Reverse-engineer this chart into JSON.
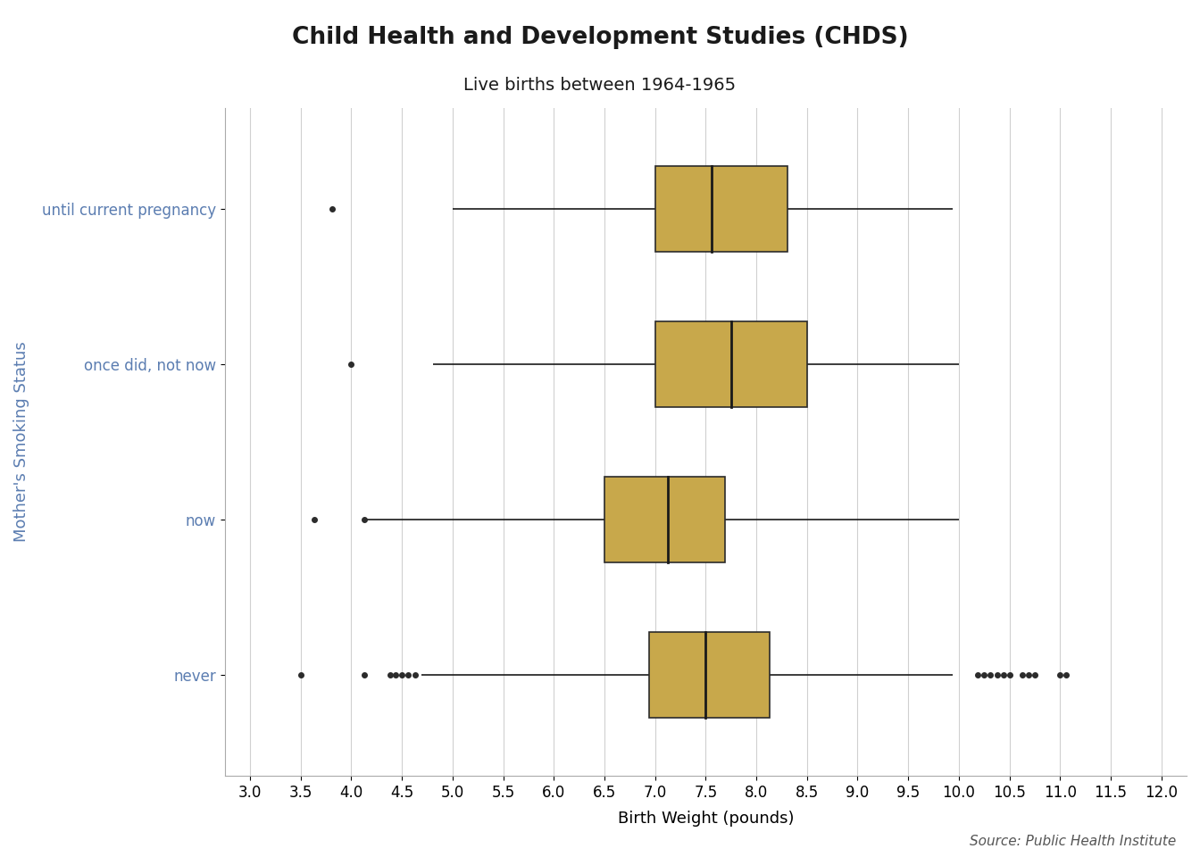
{
  "title": "Child Health and Development Studies (CHDS)",
  "subtitle": "Live births between 1964-1965",
  "xlabel": "Birth Weight (pounds)",
  "ylabel": "Mother's Smoking Status",
  "source": "Source: Public Health Institute",
  "background_color": "#ffffff",
  "plot_bg_color": "#ffffff",
  "grid_color": "#d0d0d0",
  "box_color": "#c8a84b",
  "box_edge_color": "#2b2b2b",
  "median_color": "#1a1a1a",
  "whisker_color": "#1a1a1a",
  "flier_color": "#2b2b2b",
  "xlim": [
    2.75,
    12.25
  ],
  "xticks": [
    3.0,
    3.5,
    4.0,
    4.5,
    5.0,
    5.5,
    6.0,
    6.5,
    7.0,
    7.5,
    8.0,
    8.5,
    9.0,
    9.5,
    10.0,
    10.5,
    11.0,
    11.5,
    12.0
  ],
  "boxplot_stats": [
    {
      "label": "until current pregnancy",
      "q1": 7.0,
      "median": 7.56,
      "q3": 8.31,
      "whisker_low": 5.0,
      "whisker_high": 9.94,
      "fliers": [
        3.81
      ]
    },
    {
      "label": "once did, not now",
      "q1": 7.0,
      "median": 7.75,
      "q3": 8.5,
      "whisker_low": 4.81,
      "whisker_high": 10.0,
      "fliers": [
        4.0
      ]
    },
    {
      "label": "now",
      "q1": 6.5,
      "median": 7.13,
      "q3": 7.69,
      "whisker_low": 4.13,
      "whisker_high": 10.0,
      "fliers": [
        3.63,
        4.13
      ]
    },
    {
      "label": "never",
      "q1": 6.94,
      "median": 7.5,
      "q3": 8.13,
      "whisker_low": 4.69,
      "whisker_high": 9.94,
      "fliers": [
        3.5,
        4.13,
        4.38,
        4.44,
        4.5,
        4.56,
        4.63,
        10.19,
        10.25,
        10.31,
        10.38,
        10.44,
        10.5,
        10.63,
        10.69,
        10.75,
        11.0,
        11.06
      ]
    }
  ],
  "title_fontsize": 19,
  "subtitle_fontsize": 14,
  "axis_label_fontsize": 13,
  "tick_fontsize": 12,
  "source_fontsize": 11,
  "ytick_color": "#5b7db1",
  "ylabel_color": "#5b7db1",
  "title_color": "#1a1a1a",
  "subtitle_color": "#1a1a1a",
  "box_width": 0.55
}
